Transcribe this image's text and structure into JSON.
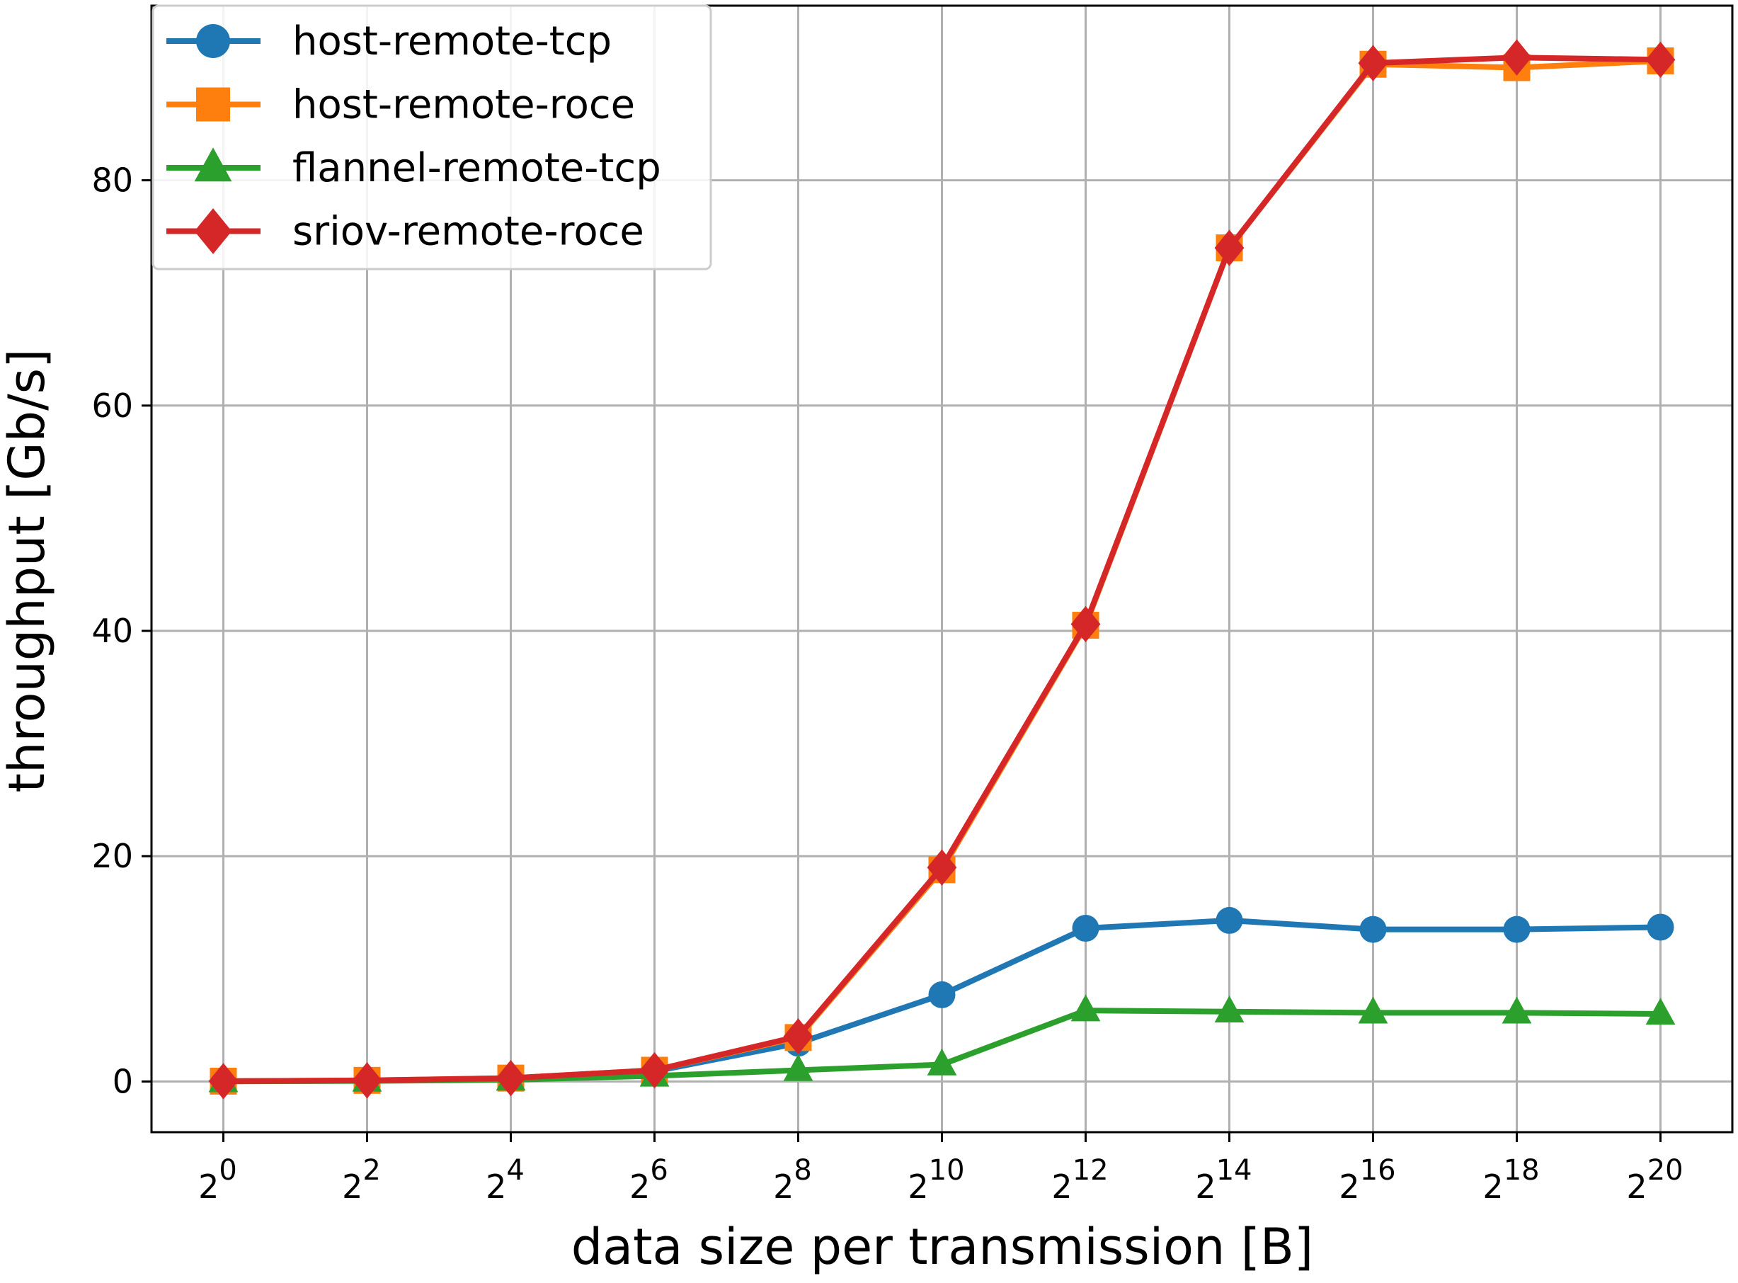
{
  "chart_data": {
    "type": "line",
    "title": "",
    "xlabel": "data size per transmission [B]",
    "ylabel": "throughput [Gb/s]",
    "x_exponents": [
      0,
      2,
      4,
      6,
      8,
      10,
      12,
      14,
      16,
      18,
      20
    ],
    "x_tick_base": "2",
    "x_tick_exponents": [
      "0",
      "2",
      "4",
      "6",
      "8",
      "10",
      "12",
      "14",
      "16",
      "18",
      "20"
    ],
    "x_scale": "log2",
    "y_ticks": [
      0,
      20,
      40,
      60,
      80
    ],
    "y_tick_labels": [
      "0",
      "20",
      "40",
      "60",
      "80"
    ],
    "xlim_exponent": [
      -1,
      21
    ],
    "ylim": [
      -4.5,
      95.5
    ],
    "grid": true,
    "legend_position": "top-left",
    "series": [
      {
        "name": "host-remote-tcp",
        "color": "#1f77b4",
        "marker": "circle",
        "values": [
          0.02,
          0.07,
          0.25,
          0.9,
          3.4,
          7.7,
          13.6,
          14.3,
          13.5,
          13.5,
          13.7
        ]
      },
      {
        "name": "host-remote-roce",
        "color": "#ff7f0e",
        "marker": "square",
        "values": [
          0.03,
          0.1,
          0.3,
          1.0,
          3.9,
          18.8,
          40.5,
          74.0,
          90.3,
          90.0,
          90.6
        ]
      },
      {
        "name": "flannel-remote-tcp",
        "color": "#2ca02c",
        "marker": "triangle",
        "values": [
          0.01,
          0.05,
          0.15,
          0.5,
          1.0,
          1.5,
          6.3,
          6.2,
          6.1,
          6.1,
          6.0
        ]
      },
      {
        "name": "sriov-remote-roce",
        "color": "#d62728",
        "marker": "diamond",
        "values": [
          0.03,
          0.1,
          0.3,
          1.0,
          4.0,
          19.0,
          40.6,
          74.0,
          90.4,
          90.9,
          90.7
        ]
      }
    ]
  }
}
